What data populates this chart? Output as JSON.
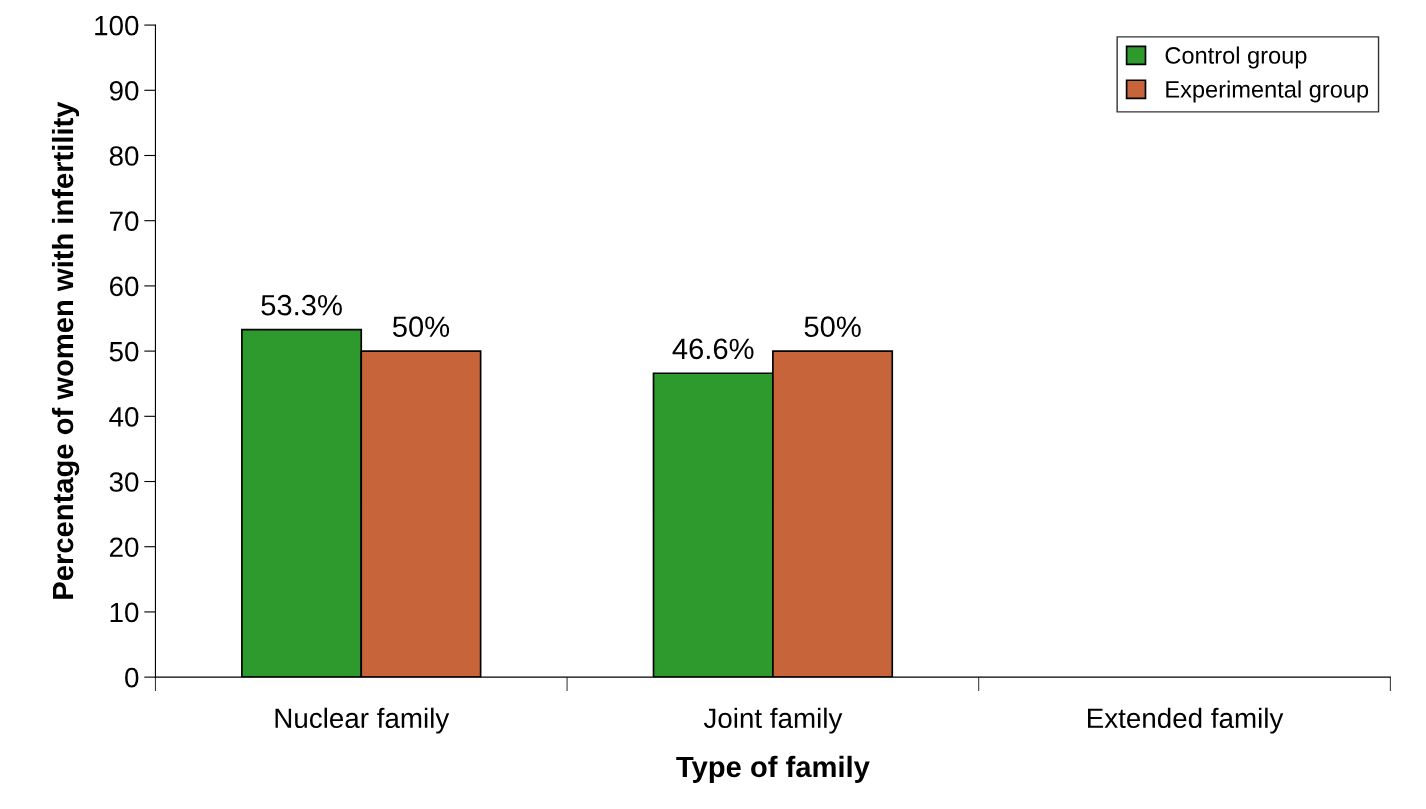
{
  "chart_data": {
    "type": "bar",
    "xlabel": "Type of family",
    "ylabel": "Percentage of women with infertility",
    "categories": [
      "Nuclear family",
      "Joint family",
      "Extended family"
    ],
    "series": [
      {
        "name": "Control group",
        "color": "#2e9a2e",
        "values": [
          53.3,
          46.6,
          null
        ],
        "value_labels": [
          "53.3%",
          "46.6%",
          null
        ]
      },
      {
        "name": "Experimental group",
        "color": "#c8643a",
        "values": [
          50,
          50,
          null
        ],
        "value_labels": [
          "50%",
          "50%",
          null
        ]
      }
    ],
    "ylim": [
      0,
      100
    ],
    "yticks": [
      0,
      10,
      20,
      30,
      40,
      50,
      60,
      70,
      80,
      90,
      100
    ],
    "grid": false,
    "legend": "top right"
  }
}
